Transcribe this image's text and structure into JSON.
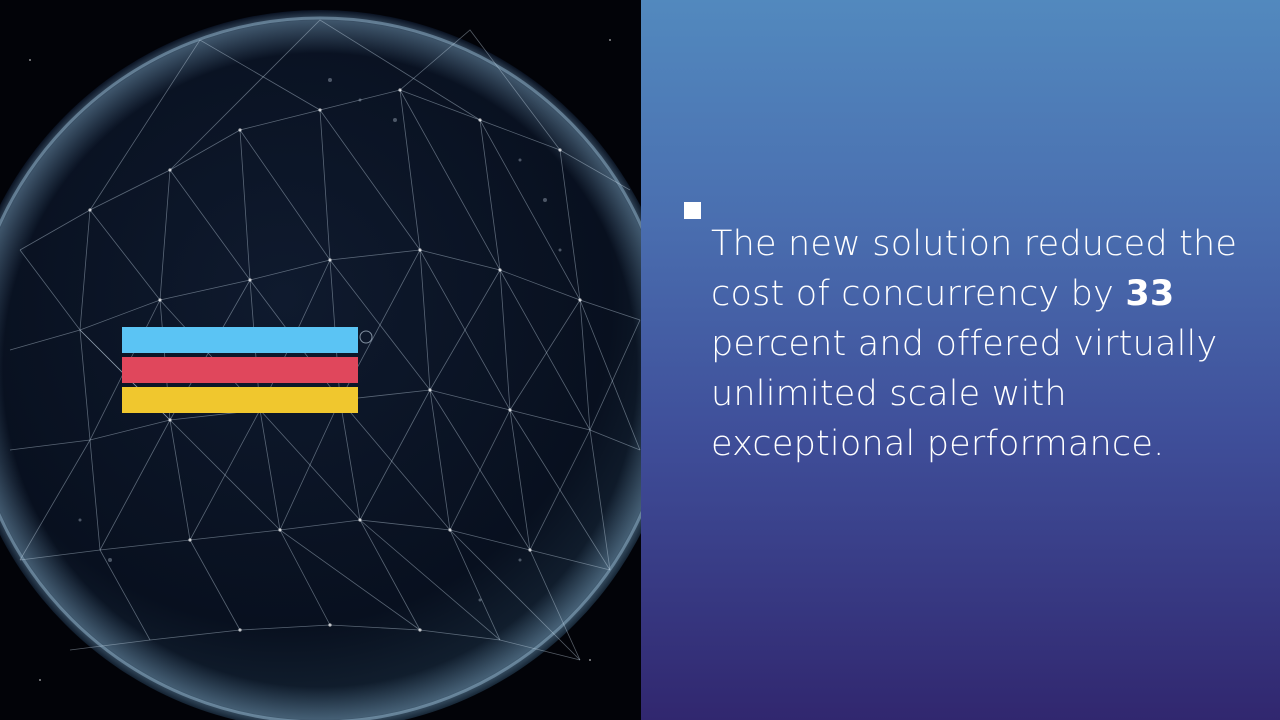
{
  "slide": {
    "quote": {
      "before_figure": "The new solution reduced the cost of concurrency by ",
      "figure": "33",
      "after_figure": " percent and offered virtually unlimited scale with exceptional performance."
    },
    "bullet_icon": "square-bullet-icon",
    "globe_icon": "network-globe-icon"
  },
  "colors": {
    "stripe_top": "#5bc4f4",
    "stripe_middle": "#e0475c",
    "stripe_bottom": "#f0c72e",
    "panel_gradient_top": "#5289be",
    "panel_gradient_bottom": "#31276f",
    "text": "#ffffff"
  }
}
